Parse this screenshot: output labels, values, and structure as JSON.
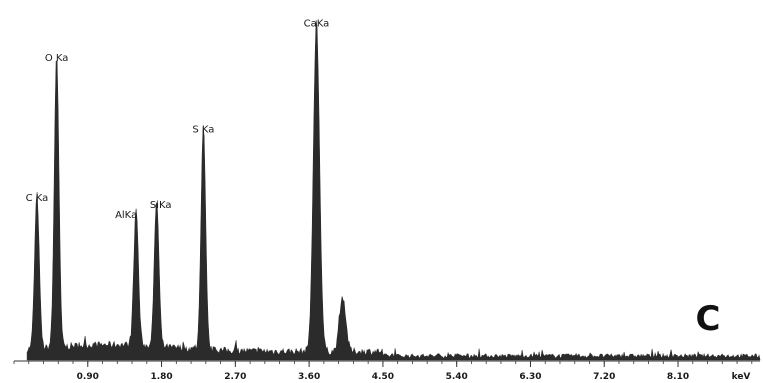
{
  "chart_data": {
    "type": "area",
    "xlabel": "",
    "ylabel": "",
    "xlim": [
      0,
      9.1
    ],
    "ylim": [
      0,
      1
    ],
    "grid": false,
    "unit_label": "keV",
    "panel_letter": "C",
    "x_ticks": [
      {
        "value": 0.9,
        "label": "0.90"
      },
      {
        "value": 1.8,
        "label": "1.80"
      },
      {
        "value": 2.7,
        "label": "2.70"
      },
      {
        "value": 3.6,
        "label": "3.60"
      },
      {
        "value": 4.5,
        "label": "4.50"
      },
      {
        "value": 5.4,
        "label": "5.40"
      },
      {
        "value": 6.3,
        "label": "6.30"
      },
      {
        "value": 7.2,
        "label": "7.20"
      },
      {
        "value": 8.1,
        "label": "8.10"
      }
    ],
    "peaks": [
      {
        "label": "C Ka",
        "energy": 0.28,
        "intensity": 0.45
      },
      {
        "label": "O Ka",
        "energy": 0.52,
        "intensity": 0.86
      },
      {
        "label": "AlKa",
        "energy": 1.49,
        "intensity": 0.4
      },
      {
        "label": "SiKa",
        "energy": 1.74,
        "intensity": 0.43
      },
      {
        "label": "S Ka",
        "energy": 2.31,
        "intensity": 0.65
      },
      {
        "label": "CaKa",
        "energy": 3.69,
        "intensity": 0.96
      },
      {
        "label": "",
        "energy": 4.01,
        "intensity": 0.16
      }
    ],
    "colors": {
      "fill": "#2b2b2b",
      "axis": "#333333"
    }
  }
}
